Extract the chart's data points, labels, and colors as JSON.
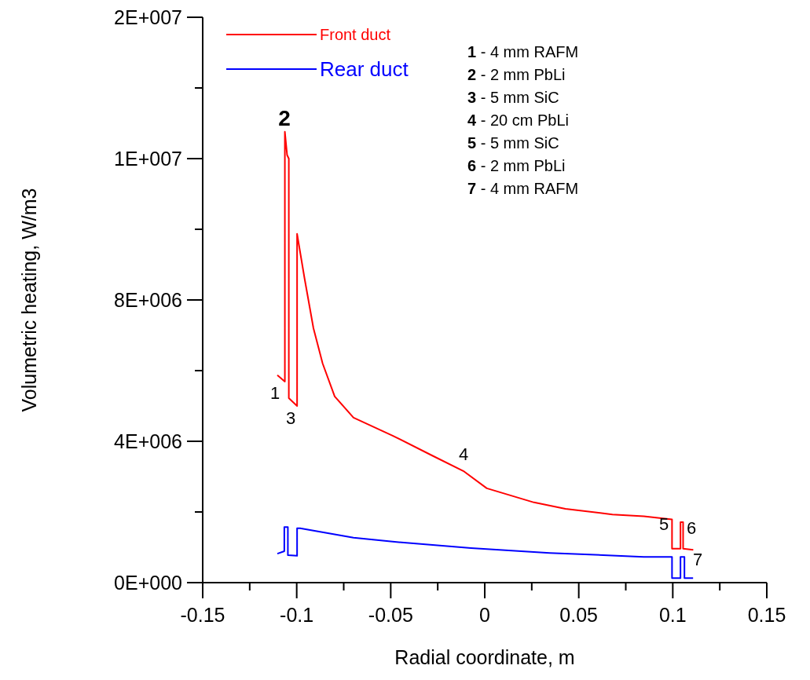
{
  "chart_data": {
    "type": "line",
    "xlabel": "Radial coordinate, m",
    "ylabel": "Volumetric heating, W/m3",
    "xlim": [
      -0.15,
      0.15
    ],
    "ylim": [
      0,
      16000000
    ],
    "xticks": [
      -0.15,
      {
        "value": -0.125,
        "label": null
      },
      -0.1,
      {
        "value": -0.075,
        "label": null
      },
      -0.05,
      {
        "value": -0.025,
        "label": null
      },
      0,
      {
        "value": 0.025,
        "label": null
      },
      0.05,
      {
        "value": 0.075,
        "label": null
      },
      0.1,
      {
        "value": 0.125,
        "label": null
      },
      0.15
    ],
    "yticks": [
      {
        "value": 0,
        "label": "0E+000"
      },
      {
        "value": 2000000,
        "label": null
      },
      {
        "value": 4000000,
        "label": "4E+006"
      },
      {
        "value": 6000000,
        "label": null
      },
      {
        "value": 8000000,
        "label": "8E+006"
      },
      {
        "value": 10000000,
        "label": null
      },
      {
        "value": 12000000,
        "label": "1E+007"
      },
      {
        "value": 14000000,
        "label": null
      },
      {
        "value": 16000000,
        "label": "2E+007"
      }
    ],
    "grid": false,
    "legend": "top left",
    "marker": "none",
    "line_style": "solid",
    "series": [
      {
        "name": "Front duct",
        "color": "#ff0000",
        "x": [
          -0.1103,
          -0.1063,
          -0.1063,
          -0.1051,
          -0.1042,
          -0.1042,
          -0.0998,
          -0.0998,
          -0.0958,
          -0.0911,
          -0.0862,
          -0.0798,
          -0.0698,
          -0.049,
          -0.0281,
          -0.0114,
          0.0011,
          0.0262,
          0.0429,
          0.0679,
          0.0846,
          0.0996,
          0.0996,
          0.1041,
          0.1041,
          0.1055,
          0.1055,
          0.1109
        ],
        "values": [
          5870000,
          5690000,
          12760000,
          12100000,
          12000000,
          5220000,
          5000000,
          9870000,
          8600000,
          7200000,
          6200000,
          5270000,
          4670000,
          4160000,
          3600000,
          3160000,
          2670000,
          2270000,
          2090000,
          1930000,
          1880000,
          1790000,
          960000,
          960000,
          1710000,
          1710000,
          960000,
          930000
        ]
      },
      {
        "name": "Rear duct",
        "color": "#0000ff",
        "x": [
          -0.1103,
          -0.1066,
          -0.1066,
          -0.1047,
          -0.1047,
          -0.0998,
          -0.0998,
          -0.0982,
          -0.0698,
          -0.049,
          -0.0073,
          0.0345,
          0.0846,
          0.0996,
          0.0996,
          0.1041,
          0.1041,
          0.1062,
          0.1062,
          0.1108
        ],
        "values": [
          820000,
          890000,
          1570000,
          1570000,
          780000,
          760000,
          1540000,
          1540000,
          1270000,
          1160000,
          980000,
          840000,
          730000,
          730000,
          130000,
          130000,
          730000,
          730000,
          130000,
          130000
        ]
      }
    ],
    "annotations": [
      "2",
      "1",
      "3",
      "4",
      "5",
      "6",
      "7",
      "1 - 4 mm RAFM",
      "2 - 2 mm PbLi",
      "3 - 5 mm SiC",
      "4 - 20 cm PbLi",
      "5 - 5 mm SiC",
      "6 - 2 mm PbLi",
      "7 - 4 mm RAFM"
    ]
  }
}
